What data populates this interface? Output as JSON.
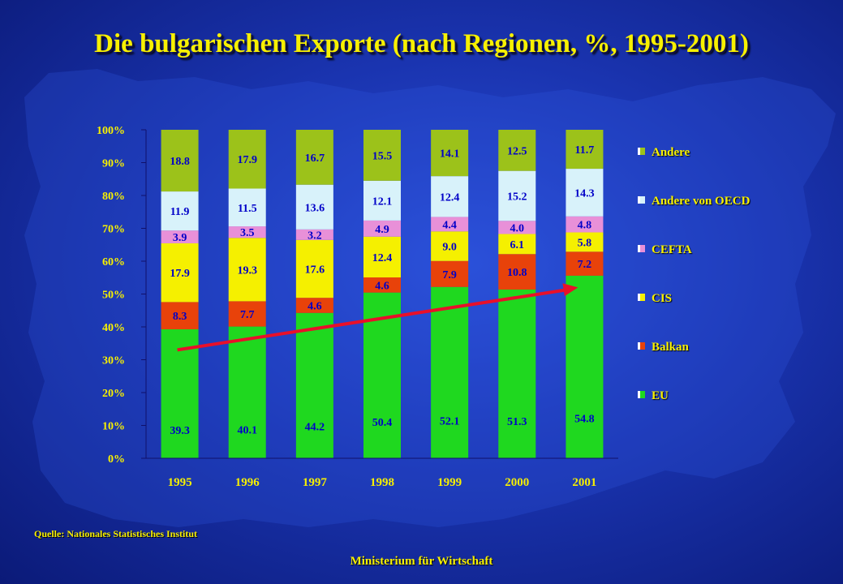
{
  "title": "Die bulgarischen Exporte (nach Regionen, %, 1995-2001)",
  "source": "Quelle: Nationales Statistisches Institut",
  "footer": "Ministerium für Wirtschaft",
  "chart_data": {
    "type": "bar",
    "stacked": true,
    "normalized_percent": true,
    "categories": [
      "1995",
      "1996",
      "1997",
      "1998",
      "1999",
      "2000",
      "2001"
    ],
    "ylim": [
      0,
      100
    ],
    "yticks": [
      "0%",
      "10%",
      "20%",
      "30%",
      "40%",
      "50%",
      "60%",
      "70%",
      "80%",
      "90%",
      "100%"
    ],
    "legend_position": "right",
    "series": [
      {
        "name": "EU",
        "color": "#1fd81f",
        "label_color": "#0000c8",
        "values": [
          39.3,
          40.1,
          44.2,
          50.4,
          52.1,
          51.3,
          54.8
        ]
      },
      {
        "name": "Balkan",
        "color": "#e8420a",
        "label_color": "#0000c8",
        "values": [
          8.3,
          7.7,
          4.6,
          4.6,
          7.9,
          10.8,
          7.2
        ]
      },
      {
        "name": "CIS",
        "color": "#f5f000",
        "label_color": "#0000c8",
        "values": [
          17.9,
          19.3,
          17.6,
          12.4,
          9.0,
          6.1,
          5.8
        ]
      },
      {
        "name": "CEFTA",
        "color": "#e890d8",
        "label_color": "#0000c8",
        "values": [
          3.9,
          3.5,
          3.2,
          4.9,
          4.4,
          4.0,
          4.8
        ]
      },
      {
        "name": "Andere von OECD",
        "color": "#d8f2fa",
        "label_color": "#0000c8",
        "values": [
          11.9,
          11.5,
          13.6,
          12.1,
          12.4,
          15.2,
          14.3
        ]
      },
      {
        "name": "Andere",
        "color": "#9cc21a",
        "label_color": "#0000c8",
        "values": [
          18.8,
          17.9,
          16.7,
          15.5,
          14.1,
          12.5,
          11.7
        ]
      }
    ],
    "value_labels": [
      [
        "39.3",
        "40.1",
        "44.2",
        "50.4",
        "52.1",
        "51.3",
        "54.8"
      ],
      [
        "8.3",
        "7.7",
        "4.6",
        "4.6",
        "7.9",
        "10.8",
        "7.2"
      ],
      [
        "17.9",
        "19.3",
        "17.6",
        "12.4",
        "9.0",
        "6.1",
        "5.8"
      ],
      [
        "3.9",
        "3.5",
        "3.2",
        "4.9",
        "4.4",
        "4.0",
        "4.8"
      ],
      [
        "11.9",
        "11.5",
        "13.6",
        "12.1",
        "12.4",
        "15.2",
        "14.3"
      ],
      [
        "18.8",
        "17.9",
        "16.7",
        "15.5",
        "14.1",
        "12.5",
        "11.7"
      ]
    ],
    "trend_arrow": {
      "color": "#e8102a",
      "from": {
        "x": "1995",
        "y": 33
      },
      "to": {
        "x": "2001",
        "y": 52
      }
    },
    "legend": [
      "Andere",
      "Andere von OECD",
      "CEFTA",
      "CIS",
      "Balkan",
      "EU"
    ]
  }
}
